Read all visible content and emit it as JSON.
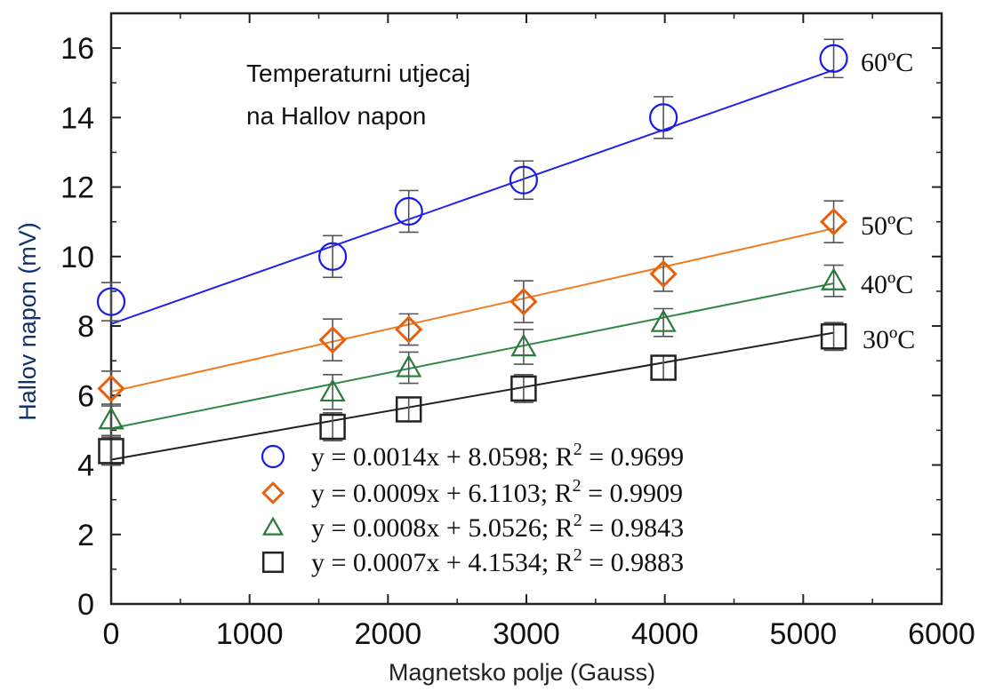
{
  "chart_data": {
    "type": "scatter",
    "title": [
      "Temperaturni utjecaj",
      "na Hallov napon"
    ],
    "xlabel": "Magnetsko polje (Gauss)",
    "ylabel": "Hallov napon (mV)",
    "xlim": [
      0,
      6000
    ],
    "ylim": [
      0,
      17
    ],
    "xticks": [
      0,
      1000,
      2000,
      3000,
      4000,
      5000,
      6000
    ],
    "yticks": [
      0,
      2,
      4,
      6,
      8,
      10,
      12,
      14,
      16
    ],
    "grid": false,
    "legend_position": "bottom-center",
    "series": [
      {
        "name": "60°C",
        "label": "60ºC",
        "marker": "circle",
        "color": "#1a1ae6",
        "line_color": "#2222ee",
        "x": [
          0,
          1600,
          2150,
          2980,
          3990,
          5220
        ],
        "y": [
          8.7,
          10.0,
          11.3,
          12.2,
          14.0,
          15.7
        ],
        "err": [
          0.55,
          0.6,
          0.6,
          0.55,
          0.6,
          0.55
        ],
        "fit": {
          "slope": 0.0014,
          "intercept": 8.0598
        },
        "equation": "y = 0.0014x + 8.0598; R",
        "r2": "= 0.9699"
      },
      {
        "name": "50°C",
        "label": "50ºC",
        "marker": "diamond",
        "color": "#e8600c",
        "line_color": "#f07c20",
        "x": [
          0,
          1600,
          2150,
          2980,
          3990,
          5220
        ],
        "y": [
          6.2,
          7.6,
          7.9,
          8.7,
          9.5,
          11.0
        ],
        "err": [
          0.5,
          0.6,
          0.45,
          0.6,
          0.5,
          0.6
        ],
        "fit": {
          "slope": 0.0009,
          "intercept": 6.1103
        },
        "equation": "y = 0.0009x + 6.1103; R",
        "r2": "= 0.9909"
      },
      {
        "name": "40°C",
        "label": "40ºC",
        "marker": "triangle",
        "color": "#2a7a3a",
        "line_color": "#2f8a47",
        "x": [
          0,
          1600,
          2150,
          2980,
          3990,
          5220
        ],
        "y": [
          5.3,
          6.1,
          6.8,
          7.4,
          8.1,
          9.3
        ],
        "err": [
          0.45,
          0.5,
          0.45,
          0.5,
          0.4,
          0.45
        ],
        "fit": {
          "slope": 0.0008,
          "intercept": 5.0526
        },
        "equation": "y = 0.0008x + 5.0526; R",
        "r2": "= 0.9843"
      },
      {
        "name": "30°C",
        "label": "30ºC",
        "marker": "square",
        "color": "#222222",
        "line_color": "#222222",
        "x": [
          0,
          1600,
          2150,
          2980,
          3990,
          5220
        ],
        "y": [
          4.4,
          5.1,
          5.6,
          6.2,
          6.8,
          7.7
        ],
        "err": [
          0.4,
          0.4,
          0.35,
          0.4,
          0.35,
          0.4
        ],
        "fit": {
          "slope": 0.0007,
          "intercept": 4.1534
        },
        "equation": "y = 0.0007x + 4.1534; R",
        "r2": "= 0.9883"
      }
    ]
  }
}
